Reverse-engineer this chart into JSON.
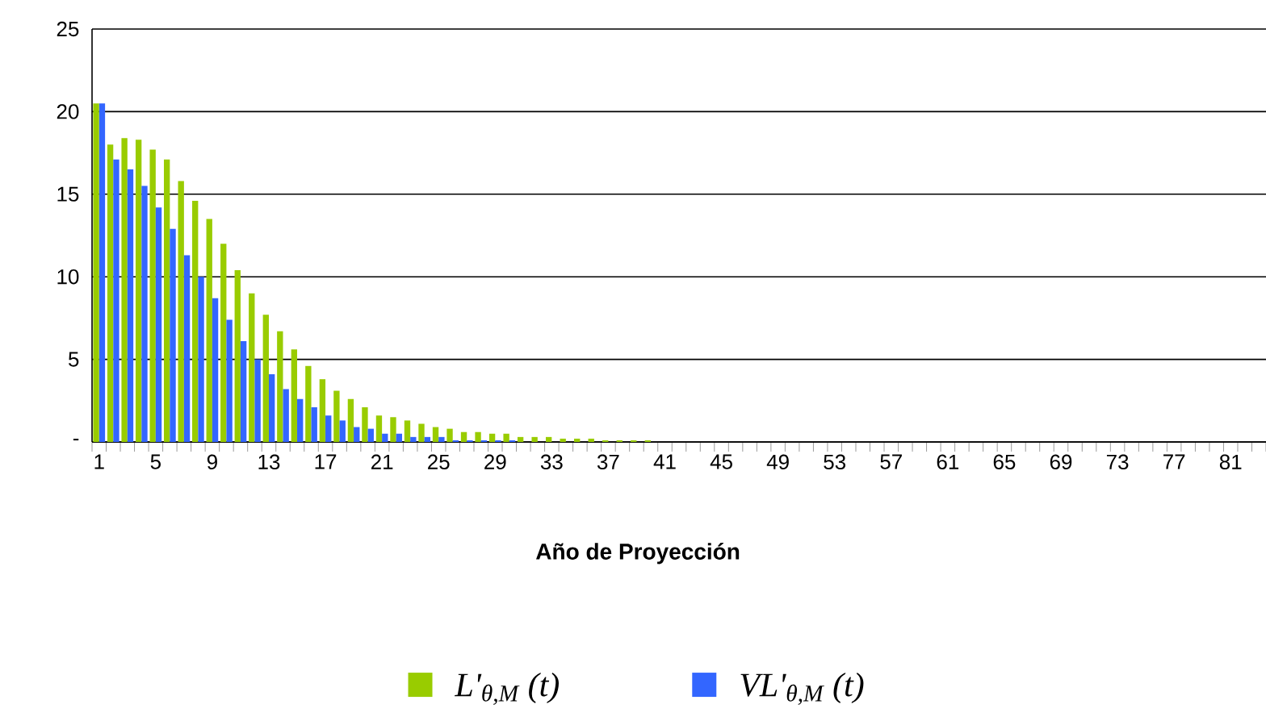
{
  "chart_data": {
    "type": "bar",
    "xlabel": "Año de Proyección",
    "categories": [
      "1",
      null,
      null,
      null,
      "5",
      null,
      null,
      null,
      "9",
      null,
      null,
      null,
      "13",
      null,
      null,
      null,
      "17",
      null,
      null,
      null,
      "21",
      null,
      null,
      null,
      "25",
      null,
      null,
      null,
      "29",
      null,
      null,
      null,
      "33",
      null,
      null,
      null,
      "37",
      null,
      null,
      null,
      "41",
      null,
      null,
      null,
      "45",
      null,
      null,
      null,
      "49",
      null,
      null,
      null,
      "53",
      null,
      null,
      null,
      "57",
      null,
      null,
      null,
      "61",
      null,
      null,
      null,
      "65",
      null,
      null,
      null,
      "69",
      null,
      null,
      null,
      "73",
      null,
      null,
      null,
      "77",
      null,
      null,
      null,
      "81",
      null,
      null
    ],
    "series": [
      {
        "name": "L'$_{θ,M}$ (t)",
        "color": "#99cc00",
        "values": [
          20.5,
          18.0,
          18.4,
          18.3,
          17.7,
          17.1,
          15.8,
          14.6,
          13.5,
          12.0,
          10.4,
          9.0,
          7.7,
          6.7,
          5.6,
          4.6,
          3.8,
          3.1,
          2.6,
          2.1,
          1.6,
          1.5,
          1.3,
          1.1,
          0.9,
          0.8,
          0.6,
          0.6,
          0.5,
          0.5,
          0.3,
          0.3,
          0.3,
          0.2,
          0.2,
          0.2,
          0.1,
          0.1,
          0.1,
          0.1,
          0,
          0,
          0,
          0,
          0,
          0,
          0,
          0,
          0,
          0,
          0,
          0,
          0,
          0,
          0,
          0,
          0,
          0,
          0,
          0,
          0,
          0,
          0,
          0,
          0,
          0,
          0,
          0,
          0,
          0,
          0,
          0,
          0,
          0,
          0,
          0,
          0,
          0,
          0,
          0,
          0,
          0,
          0
        ]
      },
      {
        "name": "VL'$_{θ,M}$ (t)",
        "color": "#3366ff",
        "values": [
          20.5,
          17.1,
          16.5,
          15.5,
          14.2,
          12.9,
          11.3,
          10.0,
          8.7,
          7.4,
          6.1,
          5.0,
          4.1,
          3.2,
          2.6,
          2.1,
          1.6,
          1.3,
          0.9,
          0.8,
          0.5,
          0.5,
          0.3,
          0.3,
          0.3,
          0.1,
          0.1,
          0.1,
          0.1,
          0.1,
          0,
          0,
          0,
          0,
          0,
          0,
          0,
          0,
          0,
          0,
          0,
          0,
          0,
          0,
          0,
          0,
          0,
          0,
          0,
          0,
          0,
          0,
          0,
          0,
          0,
          0,
          0,
          0,
          0,
          0,
          0,
          0,
          0,
          0,
          0,
          0,
          0,
          0,
          0,
          0,
          0,
          0,
          0,
          0,
          0,
          0,
          0,
          0,
          0,
          0,
          0,
          0,
          0
        ]
      }
    ],
    "ylim": [
      0,
      25
    ],
    "yticks": [
      {
        "value": 0,
        "label": "-"
      },
      5,
      10,
      15,
      20,
      25
    ],
    "grid": "y",
    "legend": "bottom"
  }
}
